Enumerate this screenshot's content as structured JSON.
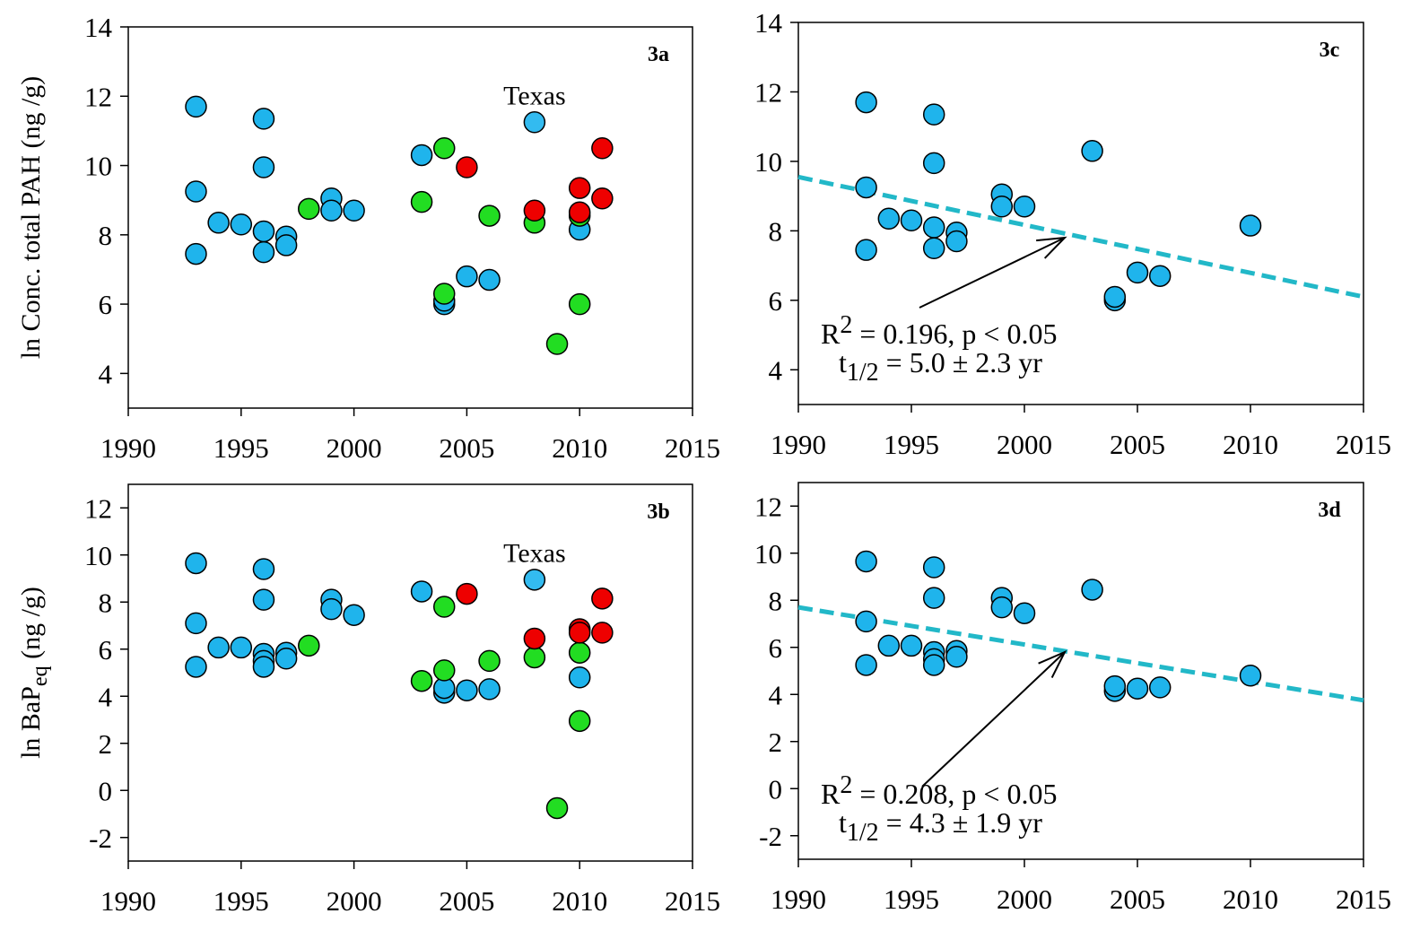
{
  "chart_data": [
    {
      "type": "scatter",
      "panel_label": "3a",
      "ylabel": [
        "ln Conc. total PAH (ng /g)"
      ],
      "xlim": [
        1990,
        2015
      ],
      "ylim": [
        3,
        14
      ],
      "xticks": [
        1990,
        1995,
        2000,
        2005,
        2010,
        2015
      ],
      "yticks": [
        4,
        6,
        8,
        10,
        12,
        14
      ],
      "series": [
        {
          "color": "#1fb4ec",
          "x": [
            1993,
            1993,
            1993,
            1994,
            1995,
            1996,
            1996,
            1996,
            1996,
            1997,
            1997,
            1999,
            1999,
            2000,
            2003,
            2004,
            2004,
            2005,
            2006,
            2010
          ],
          "y": [
            11.7,
            9.25,
            7.45,
            8.35,
            8.3,
            11.35,
            9.95,
            8.1,
            7.5,
            7.95,
            7.7,
            9.05,
            8.7,
            8.7,
            10.3,
            6.0,
            6.1,
            6.8,
            6.7,
            8.15
          ]
        },
        {
          "color": "#22dd22",
          "x": [
            1998,
            2003,
            2004,
            2004,
            2006,
            2008,
            2009,
            2010,
            2010
          ],
          "y": [
            8.75,
            8.95,
            10.5,
            6.3,
            8.55,
            8.35,
            4.85,
            8.55,
            6.0
          ]
        },
        {
          "color": "#ee0000",
          "x": [
            2005,
            2008,
            2010,
            2010,
            2011,
            2011
          ],
          "y": [
            9.95,
            8.7,
            9.35,
            8.65,
            10.5,
            9.05
          ]
        },
        {
          "color": "#33bbf0",
          "label": "Texas",
          "x": [
            2008
          ],
          "y": [
            11.25
          ]
        }
      ]
    },
    {
      "type": "scatter",
      "panel_label": "3c",
      "xlim": [
        1990,
        2015
      ],
      "ylim": [
        3,
        14
      ],
      "xticks": [
        1990,
        1995,
        2000,
        2005,
        2010,
        2015
      ],
      "yticks": [
        4,
        6,
        8,
        10,
        12,
        14
      ],
      "series": [
        {
          "color": "#1fb4ec",
          "x": [
            1993,
            1993,
            1993,
            1994,
            1995,
            1996,
            1996,
            1996,
            1996,
            1997,
            1997,
            1999,
            1999,
            2000,
            2003,
            2004,
            2004,
            2005,
            2006,
            2010
          ],
          "y": [
            11.7,
            9.25,
            7.45,
            8.35,
            8.3,
            11.35,
            9.95,
            8.1,
            7.5,
            7.95,
            7.7,
            9.05,
            8.7,
            8.7,
            10.3,
            6.0,
            6.1,
            6.8,
            6.7,
            8.15
          ]
        }
      ],
      "trend": {
        "color": "#22b8c8",
        "x": [
          1990,
          2015
        ],
        "y": [
          9.55,
          6.1
        ]
      },
      "annotations": [
        [
          "R",
          "2",
          "= 0.196, p < 0.05"
        ],
        [
          "t",
          "1/2",
          "= 5.0 ± 2.3 yr"
        ]
      ]
    },
    {
      "type": "scatter",
      "panel_label": "3b",
      "ylabel": [
        "ln BaP",
        "eq",
        " (ng /g)"
      ],
      "xlim": [
        1990,
        2015
      ],
      "ylim": [
        -3,
        13
      ],
      "xticks": [
        1990,
        1995,
        2000,
        2005,
        2010,
        2015
      ],
      "yticks": [
        -2,
        0,
        2,
        4,
        6,
        8,
        10,
        12
      ],
      "series": [
        {
          "color": "#1fb4ec",
          "x": [
            1993,
            1993,
            1993,
            1994,
            1995,
            1996,
            1996,
            1996,
            1996,
            1996,
            1997,
            1997,
            1999,
            1999,
            2000,
            2003,
            2004,
            2004,
            2005,
            2006,
            2010
          ],
          "y": [
            9.65,
            7.1,
            5.25,
            6.07,
            6.07,
            9.4,
            8.1,
            5.8,
            5.5,
            5.25,
            5.85,
            5.6,
            8.1,
            7.7,
            7.45,
            8.45,
            4.15,
            4.35,
            4.25,
            4.3,
            4.8
          ]
        },
        {
          "color": "#22dd22",
          "x": [
            1998,
            2003,
            2004,
            2004,
            2006,
            2008,
            2009,
            2010,
            2010
          ],
          "y": [
            6.15,
            4.65,
            7.8,
            5.1,
            5.5,
            5.65,
            -0.75,
            5.85,
            2.95
          ]
        },
        {
          "color": "#ee0000",
          "x": [
            2005,
            2008,
            2010,
            2010,
            2011,
            2011
          ],
          "y": [
            8.35,
            6.45,
            6.85,
            6.7,
            8.15,
            6.7
          ]
        },
        {
          "color": "#33bbf0",
          "label": "Texas",
          "x": [
            2008
          ],
          "y": [
            8.95
          ]
        }
      ]
    },
    {
      "type": "scatter",
      "panel_label": "3d",
      "xlim": [
        1990,
        2015
      ],
      "ylim": [
        -3,
        13
      ],
      "xticks": [
        1990,
        1995,
        2000,
        2005,
        2010,
        2015
      ],
      "yticks": [
        -2,
        0,
        2,
        4,
        6,
        8,
        10,
        12
      ],
      "series": [
        {
          "color": "#1fb4ec",
          "x": [
            1993,
            1993,
            1993,
            1994,
            1995,
            1996,
            1996,
            1996,
            1996,
            1996,
            1997,
            1997,
            1999,
            1999,
            2000,
            2003,
            2004,
            2004,
            2005,
            2006,
            2010
          ],
          "y": [
            9.65,
            7.1,
            5.25,
            6.07,
            6.07,
            9.4,
            8.1,
            5.8,
            5.5,
            5.25,
            5.85,
            5.6,
            8.1,
            7.7,
            7.45,
            8.45,
            4.15,
            4.35,
            4.25,
            4.3,
            4.8
          ]
        }
      ],
      "trend": {
        "color": "#22b8c8",
        "x": [
          1990,
          2015
        ],
        "y": [
          7.7,
          3.75
        ]
      },
      "annotations": [
        [
          "R",
          "2",
          "= 0.208, p < 0.05"
        ],
        [
          "t",
          "1/2",
          "= 4.3 ± 1.9 yr"
        ]
      ]
    }
  ]
}
